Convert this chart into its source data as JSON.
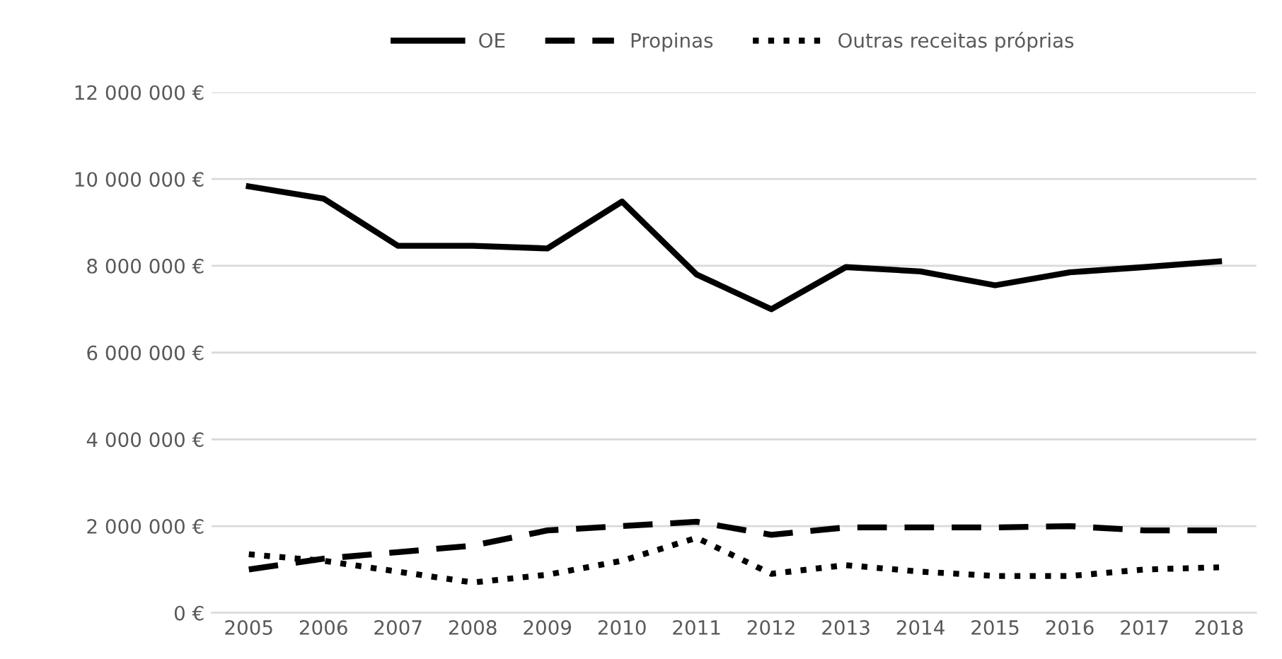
{
  "chart_data": {
    "type": "line",
    "categories": [
      "2005",
      "2006",
      "2007",
      "2008",
      "2009",
      "2010",
      "2011",
      "2012",
      "2013",
      "2014",
      "2015",
      "2016",
      "2017",
      "2018"
    ],
    "series": [
      {
        "name": "OE",
        "color": "#000000",
        "line_style": "solid",
        "values": [
          9830000,
          9550000,
          8460000,
          8460000,
          8400000,
          9480000,
          7800000,
          7000000,
          7970000,
          7870000,
          7550000,
          7850000,
          7970000,
          8100000
        ]
      },
      {
        "name": "Propinas",
        "color": "#000000",
        "line_style": "dashed",
        "values": [
          1000000,
          1250000,
          1400000,
          1550000,
          1900000,
          2000000,
          2100000,
          1800000,
          1970000,
          1970000,
          1970000,
          2000000,
          1900000,
          1900000
        ]
      },
      {
        "name": "Outras receitas próprias",
        "color": "#000000",
        "line_style": "dotted",
        "values": [
          1350000,
          1200000,
          950000,
          700000,
          880000,
          1200000,
          1730000,
          900000,
          1100000,
          950000,
          850000,
          850000,
          1000000,
          1050000
        ]
      }
    ],
    "ylim": [
      0,
      12000000
    ],
    "yticks": [
      {
        "value": 0,
        "label": "0 €"
      },
      {
        "value": 2000000,
        "label": "2 000 000 €"
      },
      {
        "value": 4000000,
        "label": "4 000 000 €"
      },
      {
        "value": 6000000,
        "label": "6 000 000 €"
      },
      {
        "value": 8000000,
        "label": "8 000 000 €"
      },
      {
        "value": 10000000,
        "label": "10 000 000 €"
      },
      {
        "value": 12000000,
        "label": "12 000 000 €"
      }
    ],
    "grid": "y",
    "legend": "top",
    "marker": "none"
  }
}
